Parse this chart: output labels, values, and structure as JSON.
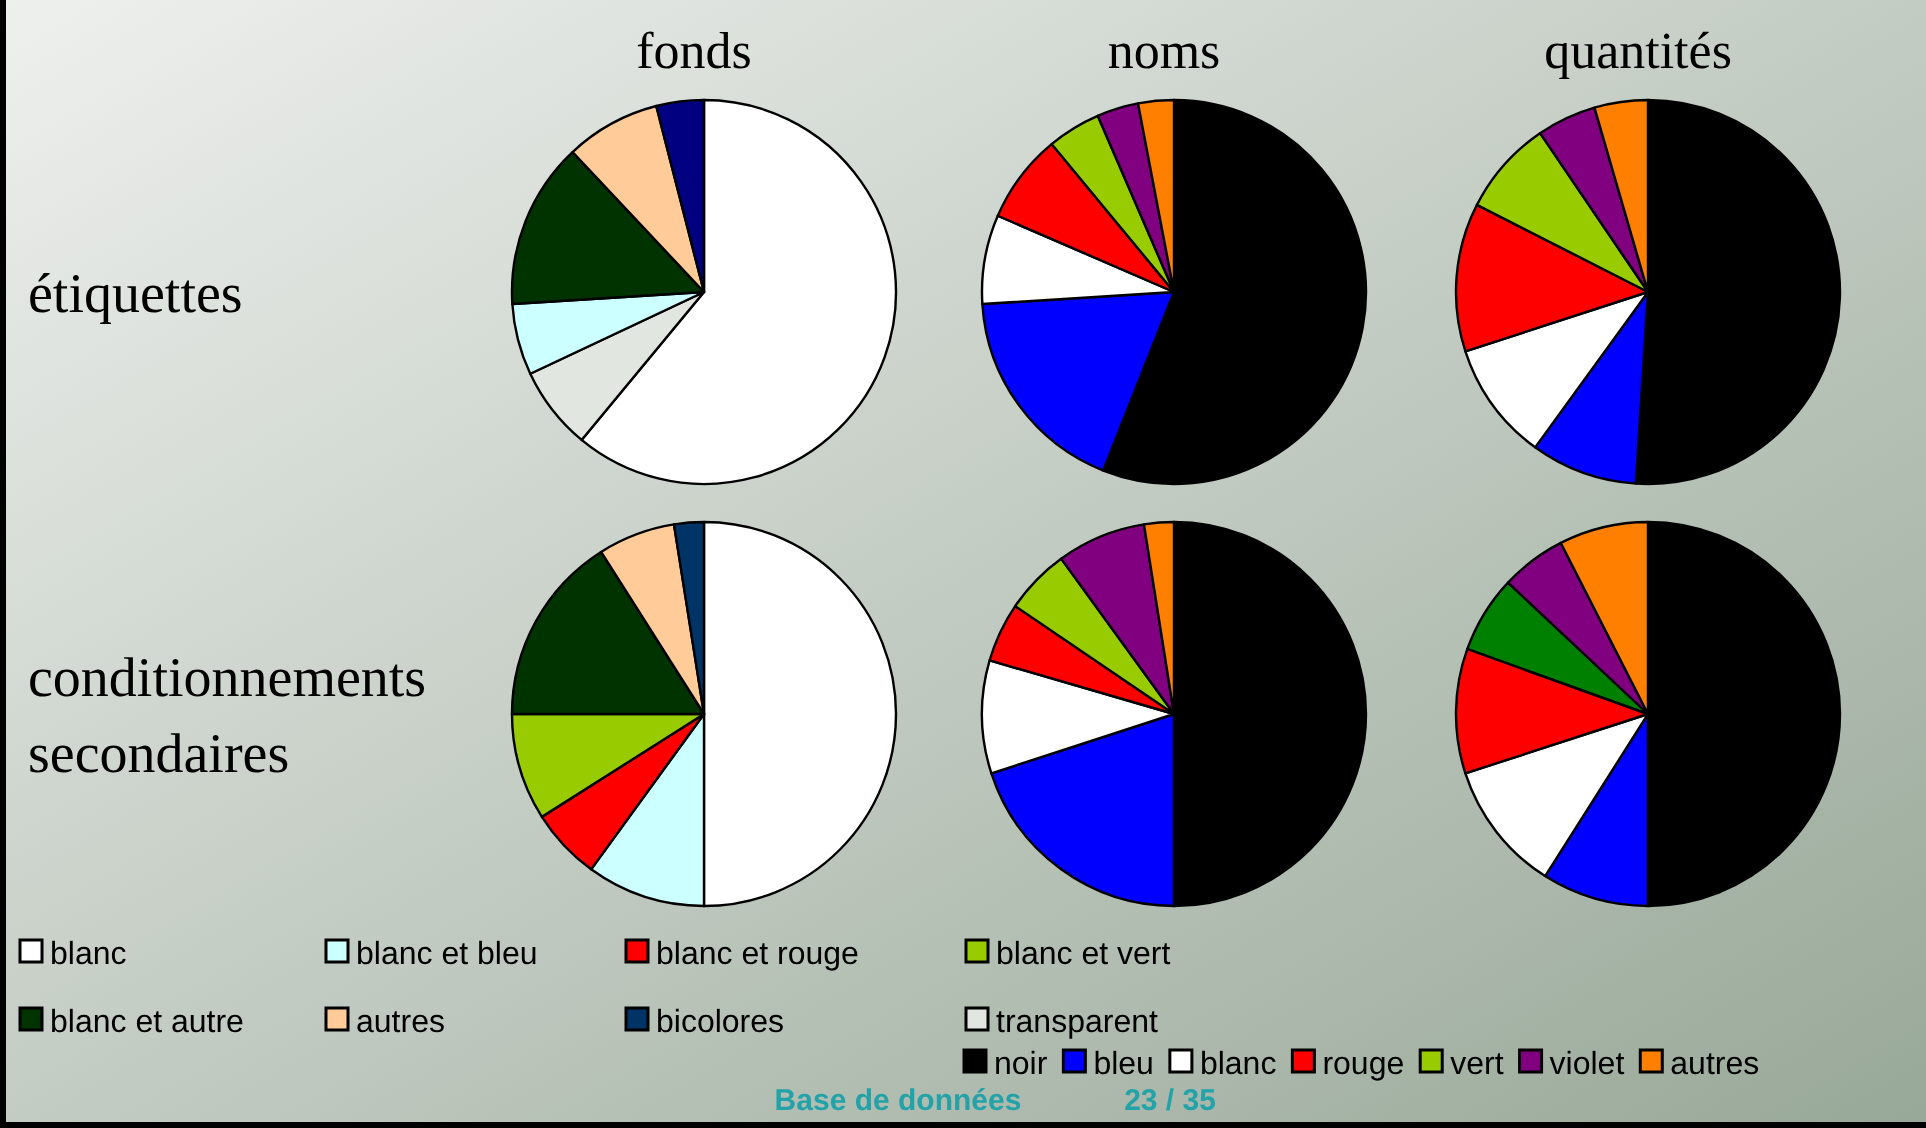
{
  "chart_data": [
    {
      "type": "pie",
      "title": "fonds",
      "ylabel": "étiquettes",
      "legend": "bottom right",
      "categories": [
        null,
        "transparent",
        null,
        null,
        null,
        null
      ],
      "values": [
        61,
        7,
        6,
        14,
        8,
        4
      ],
      "colors": [
        "#ffffff",
        "#e2e6e1",
        "#ccffff",
        "#003300",
        "#ffcc99",
        "#000080"
      ]
    },
    {
      "type": "pie",
      "title": "noms",
      "legend": "bottom right",
      "categories": [
        "noir",
        "bleu",
        "blanc",
        "rouge",
        "vert",
        "violet",
        "autres"
      ],
      "values": [
        56,
        18,
        7.5,
        7.5,
        4.5,
        3.5,
        3
      ],
      "colors": [
        "#000000",
        "#0000ff",
        "#ffffff",
        "#ff0000",
        "#99cc00",
        "#800080",
        "#ff8000"
      ]
    },
    {
      "type": "pie",
      "title": "quantités",
      "categories": [
        null,
        null,
        null,
        null,
        null,
        null,
        null
      ],
      "values": [
        51,
        9,
        10,
        12.5,
        8,
        5,
        4.5
      ],
      "colors": [
        "#000000",
        "#0000ff",
        "#ffffff",
        "#ff0000",
        "#99cc00",
        "#800080",
        "#ff8000"
      ]
    },
    {
      "type": "pie",
      "ylabel": "conditionnements secondaires",
      "legend": "bottom",
      "annotations": [
        "Base de données",
        "23 / 35"
      ],
      "categories": [
        "blanc",
        "blanc et bleu",
        "blanc et rouge",
        "blanc et vert",
        "blanc et autre",
        "autres",
        "bicolores"
      ],
      "values": [
        50,
        10,
        6,
        9,
        16,
        6.5,
        2.5
      ],
      "colors": [
        "#ffffff",
        "#ccffff",
        "#ff0000",
        "#99cc00",
        "#003300",
        "#ffcc99",
        "#003366"
      ]
    },
    {
      "type": "pie",
      "categories": [
        null,
        null,
        null,
        null,
        null,
        null,
        null
      ],
      "values": [
        50,
        20,
        9.5,
        5,
        5.5,
        7.5,
        2.5
      ],
      "colors": [
        "#000000",
        "#0000ff",
        "#ffffff",
        "#ff0000",
        "#99cc00",
        "#800080",
        "#ff8000"
      ]
    },
    {
      "type": "pie",
      "categories": [
        null,
        null,
        null,
        null,
        null,
        null,
        null
      ],
      "values": [
        50,
        9,
        11,
        10.5,
        6.5,
        5.5,
        7.5
      ],
      "colors": [
        "#000000",
        "#0000ff",
        "#ffffff",
        "#ff0000",
        "#008000",
        "#800080",
        "#ff8000"
      ]
    }
  ]
}
